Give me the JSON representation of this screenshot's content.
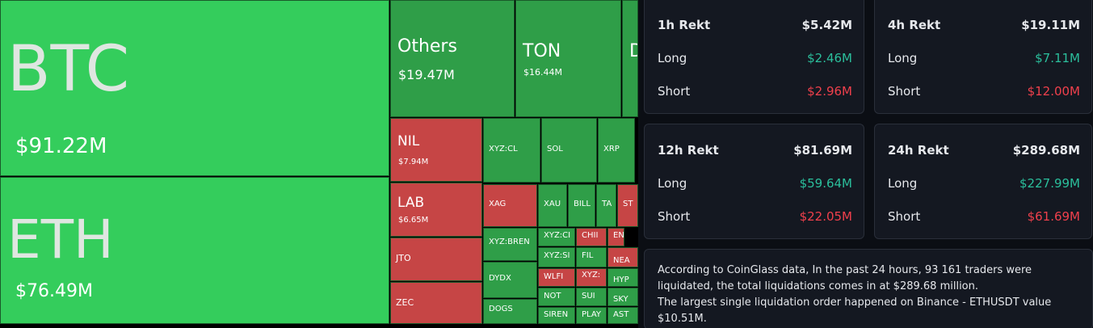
{
  "treemap": {
    "tiles": [
      {
        "label": "BTC",
        "value": "$91.22M"
      },
      {
        "label": "ETH",
        "value": "$76.49M"
      },
      {
        "label": "Others",
        "value": "$19.47M"
      },
      {
        "label": "TON",
        "value": "$16.44M"
      },
      {
        "label": "D"
      },
      {
        "label": "NIL",
        "value": "$7.94M"
      },
      {
        "label": "LAB",
        "value": "$6.65M"
      },
      {
        "label": "JTO"
      },
      {
        "label": "ZEC"
      },
      {
        "label": "XYZ:CL"
      },
      {
        "label": "SOL"
      },
      {
        "label": "XRP"
      },
      {
        "label": "XAG"
      },
      {
        "label": "XAU"
      },
      {
        "label": "BILL"
      },
      {
        "label": "TA"
      },
      {
        "label": "ST"
      },
      {
        "label": "XYZ:BREN"
      },
      {
        "label": "DYDX"
      },
      {
        "label": "DOGS"
      },
      {
        "label": "XYZ:CI"
      },
      {
        "label": "CHII"
      },
      {
        "label": "EN"
      },
      {
        "label": "XYZ:SI"
      },
      {
        "label": "FIL"
      },
      {
        "label": "NEA"
      },
      {
        "label": "WLFI"
      },
      {
        "label": "XYZ:"
      },
      {
        "label": "HYP"
      },
      {
        "label": "NOT"
      },
      {
        "label": "SUI"
      },
      {
        "label": "SKY"
      },
      {
        "label": "SIREN"
      },
      {
        "label": "PLAY"
      },
      {
        "label": "AST"
      }
    ]
  },
  "panels": [
    {
      "title": "1h Rekt",
      "total": "$5.42M",
      "long_label": "Long",
      "long": "$2.46M",
      "short_label": "Short",
      "short": "$2.96M"
    },
    {
      "title": "4h Rekt",
      "total": "$19.11M",
      "long_label": "Long",
      "long": "$7.11M",
      "short_label": "Short",
      "short": "$12.00M"
    },
    {
      "title": "12h Rekt",
      "total": "$81.69M",
      "long_label": "Long",
      "long": "$59.64M",
      "short_label": "Short",
      "short": "$22.05M"
    },
    {
      "title": "24h Rekt",
      "total": "$289.68M",
      "long_label": "Long",
      "long": "$227.99M",
      "short_label": "Short",
      "short": "$61.69M"
    }
  ],
  "note": {
    "lines": [
      "According to CoinGlass data, In the past 24 hours, 93 161 traders were liquidated, the total liquidations comes in at $289.68 million.",
      "The largest single liquidation order happened on Binance - ETHUSDT value $10.51M."
    ]
  }
}
